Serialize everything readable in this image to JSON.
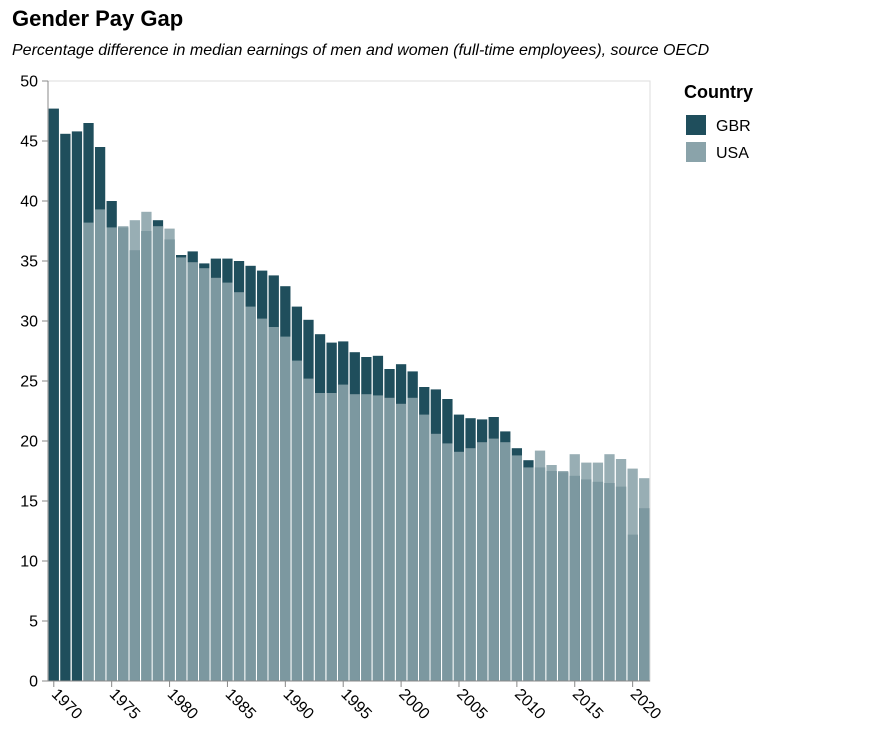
{
  "chart_data": {
    "type": "bar",
    "title": "Gender Pay Gap",
    "subtitle": "Percentage difference in median earnings of men and women (full-time employees), source OECD",
    "xlabel": "",
    "ylabel": "",
    "ylim": [
      0,
      50
    ],
    "y_ticks": [
      0,
      5,
      10,
      15,
      20,
      25,
      30,
      35,
      40,
      45,
      50
    ],
    "x_range": [
      1970,
      2021
    ],
    "x_ticks": [
      1970,
      1975,
      1980,
      1985,
      1990,
      1995,
      2000,
      2005,
      2010,
      2015,
      2020
    ],
    "grid": false,
    "legend": {
      "title": "Country",
      "position": "top-right"
    },
    "series": [
      {
        "name": "GBR",
        "color": "#1f4e5c",
        "x": [
          1970,
          1971,
          1972,
          1973,
          1974,
          1975,
          1976,
          1977,
          1978,
          1979,
          1980,
          1981,
          1982,
          1983,
          1984,
          1985,
          1986,
          1987,
          1988,
          1989,
          1990,
          1991,
          1992,
          1993,
          1994,
          1995,
          1996,
          1997,
          1998,
          1999,
          2000,
          2001,
          2002,
          2003,
          2004,
          2005,
          2006,
          2007,
          2008,
          2009,
          2010,
          2011,
          2012,
          2013,
          2014,
          2015,
          2016,
          2017,
          2018,
          2019,
          2020,
          2021
        ],
        "values": [
          47.7,
          45.6,
          45.8,
          46.5,
          44.5,
          40.0,
          37.8,
          35.9,
          37.5,
          38.4,
          36.8,
          35.5,
          35.8,
          34.8,
          35.2,
          35.2,
          35.0,
          34.6,
          34.2,
          33.8,
          32.9,
          31.2,
          30.1,
          28.9,
          28.2,
          28.3,
          27.4,
          27.0,
          27.1,
          26.0,
          26.4,
          25.8,
          24.5,
          24.3,
          23.5,
          22.2,
          21.9,
          21.8,
          22.0,
          20.8,
          19.4,
          18.4,
          17.8,
          17.5,
          17.4,
          17.1,
          16.8,
          16.6,
          16.5,
          16.2,
          12.2,
          14.4
        ]
      },
      {
        "name": "USA",
        "color": "#8aa3aa",
        "x": [
          1973,
          1974,
          1975,
          1976,
          1977,
          1978,
          1979,
          1980,
          1981,
          1982,
          1983,
          1984,
          1985,
          1986,
          1987,
          1988,
          1989,
          1990,
          1991,
          1992,
          1993,
          1994,
          1995,
          1996,
          1997,
          1998,
          1999,
          2000,
          2001,
          2002,
          2003,
          2004,
          2005,
          2006,
          2007,
          2008,
          2009,
          2010,
          2011,
          2012,
          2013,
          2014,
          2015,
          2016,
          2017,
          2018,
          2019,
          2020,
          2021
        ],
        "values": [
          38.2,
          39.3,
          37.8,
          37.9,
          38.4,
          39.1,
          37.9,
          37.7,
          35.3,
          34.9,
          34.4,
          33.6,
          33.2,
          32.4,
          31.2,
          30.2,
          29.5,
          28.7,
          26.7,
          25.2,
          24.0,
          24.0,
          24.7,
          23.9,
          23.9,
          23.8,
          23.6,
          23.1,
          23.6,
          22.2,
          20.6,
          19.8,
          19.1,
          19.4,
          19.9,
          20.2,
          19.9,
          18.8,
          17.8,
          19.2,
          18.0,
          17.5,
          18.9,
          18.2,
          18.2,
          18.9,
          18.5,
          17.7,
          16.9
        ]
      }
    ]
  }
}
